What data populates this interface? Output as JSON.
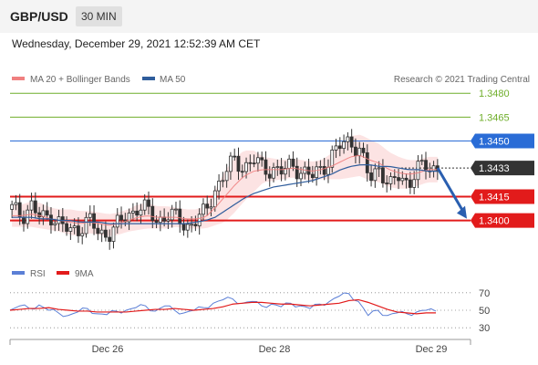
{
  "header": {
    "pair": "GBP/USD",
    "timeframe": "30 MIN"
  },
  "datetime": "Wednesday, December 29, 2021 12:52:39 AM CET",
  "legend": {
    "bb": "MA 20 + Bollinger Bands",
    "ma50": "MA 50",
    "credit": "Research © 2021 Trading Central",
    "rsi": "RSI",
    "rsi_ma": "9MA"
  },
  "colors": {
    "bb": "#f08080",
    "ma50": "#2f5d9c",
    "resistance": "#6fae2a",
    "pivot": "#2a6cd6",
    "support": "#e21b1b",
    "current": "#333333",
    "up": "#ffffff",
    "down": "#333333",
    "rsi": "#5b7fd6",
    "rsi_ma": "#e21b1b",
    "arrow": "#2a5fb0"
  },
  "chart_data": [
    {
      "type": "candlestick",
      "x_tick_labels": [
        "Dec 26",
        "Dec 28",
        "Dec 29"
      ],
      "y_range": [
        1.3378,
        1.3487
      ],
      "levels": [
        {
          "value": 1.348,
          "label": "1.3480",
          "kind": "resistance"
        },
        {
          "value": 1.3465,
          "label": "1.3465",
          "kind": "resistance"
        },
        {
          "value": 1.345,
          "label": "1.3450",
          "kind": "pivot"
        },
        {
          "value": 1.3433,
          "label": "1.3433",
          "kind": "current"
        },
        {
          "value": 1.3415,
          "label": "1.3415",
          "kind": "support"
        },
        {
          "value": 1.34,
          "label": "1.3400",
          "kind": "support"
        }
      ],
      "anchors": [
        1.3407,
        1.3403,
        1.341,
        1.34,
        1.3404,
        1.3398,
        1.3392,
        1.3396,
        1.3401,
        1.339,
        1.3393,
        1.3398,
        1.3402,
        1.341,
        1.3406,
        1.3399,
        1.3405,
        1.3401,
        1.3396,
        1.3401,
        1.3404,
        1.342,
        1.343,
        1.3437,
        1.3434,
        1.3438,
        1.3432,
        1.3433,
        1.343,
        1.3435,
        1.3431,
        1.3427,
        1.3433,
        1.344,
        1.3447,
        1.3451,
        1.3443,
        1.3425,
        1.3435,
        1.342,
        1.3428,
        1.3424,
        1.3432,
        1.3434,
        1.3433
      ],
      "ma20": [
        1.3403,
        1.3403,
        1.3404,
        1.3403,
        1.3401,
        1.34,
        1.3399,
        1.3398,
        1.3399,
        1.3398,
        1.3397,
        1.3398,
        1.34,
        1.3402,
        1.3403,
        1.3402,
        1.3402,
        1.3402,
        1.3401,
        1.3401,
        1.3402,
        1.3408,
        1.3415,
        1.3422,
        1.3428,
        1.3431,
        1.3432,
        1.3432,
        1.3432,
        1.3433,
        1.3432,
        1.3431,
        1.3432,
        1.3434,
        1.3437,
        1.344,
        1.3441,
        1.3438,
        1.3436,
        1.3432,
        1.343,
        1.3429,
        1.343,
        1.3432,
        1.3432
      ],
      "bb_halfwidth": [
        0.0007,
        0.0007,
        0.0008,
        0.0008,
        0.0007,
        0.0007,
        0.0008,
        0.0008,
        0.0007,
        0.0007,
        0.0007,
        0.0007,
        0.0007,
        0.0008,
        0.0008,
        0.0007,
        0.0007,
        0.0006,
        0.0006,
        0.0006,
        0.0007,
        0.0011,
        0.0016,
        0.0017,
        0.0016,
        0.0013,
        0.0008,
        0.0007,
        0.0006,
        0.0006,
        0.0006,
        0.0006,
        0.0006,
        0.0008,
        0.0011,
        0.0013,
        0.0013,
        0.0013,
        0.0012,
        0.0011,
        0.001,
        0.0009,
        0.0008,
        0.0008,
        0.0008
      ],
      "ma50": [
        1.3402,
        1.3402,
        1.3402,
        1.3401,
        1.3401,
        1.34,
        1.34,
        1.3399,
        1.3399,
        1.3399,
        1.3398,
        1.3398,
        1.3398,
        1.3398,
        1.3398,
        1.3398,
        1.3398,
        1.3398,
        1.3398,
        1.3399,
        1.34,
        1.3402,
        1.3406,
        1.341,
        1.3414,
        1.3417,
        1.3419,
        1.3421,
        1.3422,
        1.3423,
        1.3424,
        1.3425,
        1.3427,
        1.3429,
        1.3432,
        1.3434,
        1.3435,
        1.3435,
        1.3434,
        1.3434,
        1.3433,
        1.3432,
        1.3432,
        1.3431,
        1.3431
      ],
      "forecast": {
        "from": 1.3433,
        "to": 1.34
      }
    },
    {
      "type": "line",
      "name": "RSI",
      "y_range": [
        25,
        75
      ],
      "y_ticks": [
        70,
        50,
        30
      ],
      "rsi": [
        50,
        55,
        52,
        56,
        50,
        47,
        44,
        48,
        52,
        46,
        45,
        49,
        50,
        53,
        55,
        49,
        55,
        50,
        47,
        50,
        53,
        58,
        62,
        63,
        58,
        60,
        55,
        57,
        54,
        58,
        55,
        52,
        57,
        60,
        66,
        69,
        60,
        44,
        50,
        44,
        47,
        46,
        48,
        50,
        49
      ],
      "rsi_ma": [
        50,
        51,
        52,
        52,
        53,
        51,
        50,
        49,
        49,
        48,
        48,
        48,
        48,
        49,
        50,
        51,
        51,
        52,
        51,
        50,
        51,
        52,
        54,
        57,
        58,
        59,
        59,
        58,
        57,
        57,
        56,
        55,
        56,
        57,
        58,
        61,
        62,
        59,
        55,
        51,
        48,
        47,
        46,
        47,
        47
      ]
    }
  ]
}
